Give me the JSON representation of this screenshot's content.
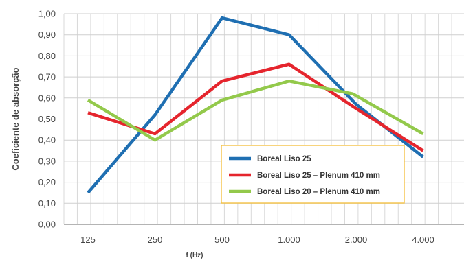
{
  "chart_data": {
    "type": "line",
    "categories": [
      "125",
      "250",
      "500",
      "1.000",
      "2.000",
      "4.000"
    ],
    "xlabel": "f (Hz)",
    "ylabel": "Coeficiente de absorção",
    "ylim": [
      0,
      1
    ],
    "yticks": [
      "0,00",
      "0,10",
      "0,20",
      "0,30",
      "0,40",
      "0,50",
      "0,60",
      "0,70",
      "0,80",
      "0,90",
      "1,00"
    ],
    "grid": true,
    "legend_position": "bottom-right",
    "series": [
      {
        "name": "Boreal Liso 25",
        "color": "#1f6fb2",
        "points": [
          [
            0,
            0.15
          ],
          [
            1,
            0.52
          ],
          [
            2,
            0.98
          ],
          [
            3,
            0.9
          ],
          [
            4,
            0.57
          ],
          [
            5,
            0.32
          ]
        ]
      },
      {
        "name": "Boreal Liso 25 – Plenum 410 mm",
        "color": "#e5252d",
        "points": [
          [
            0,
            0.53
          ],
          [
            1,
            0.43
          ],
          [
            2,
            0.68
          ],
          [
            3,
            0.76
          ],
          [
            4,
            0.55
          ],
          [
            5,
            0.35
          ]
        ]
      },
      {
        "name": "Boreal Liso 20 – Plenum 410 mm",
        "color": "#93c94b",
        "points": [
          [
            0,
            0.59
          ],
          [
            1,
            0.4
          ],
          [
            2,
            0.59
          ],
          [
            3,
            0.68
          ],
          [
            3.95,
            0.62
          ],
          [
            5,
            0.43
          ]
        ]
      }
    ]
  }
}
